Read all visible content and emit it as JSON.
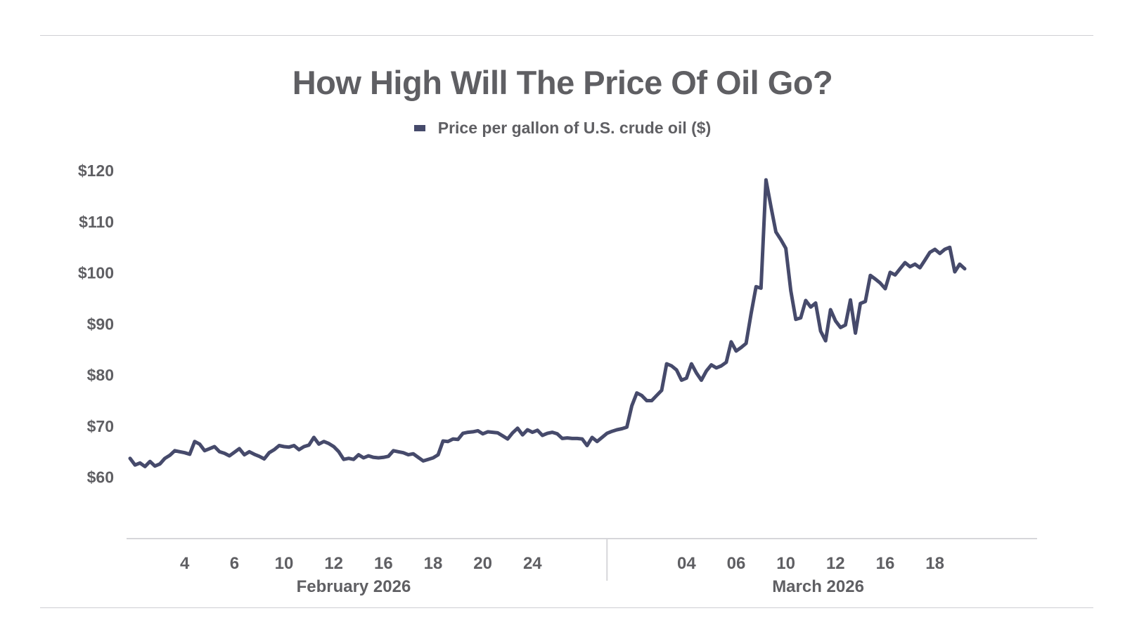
{
  "chart_data": {
    "type": "line",
    "title": "How High Will The Price Of Oil Go?",
    "legend": {
      "label": "Price per gallon of U.S. crude oil ($)",
      "placement": "top-center"
    },
    "color": "#464a6b",
    "xlabel": "",
    "ylabel": "",
    "grid": false,
    "ylim": [
      48,
      120
    ],
    "yticks": [
      60,
      70,
      80,
      90,
      100,
      110,
      120
    ],
    "ytick_labels": [
      "$60",
      "$70",
      "$80",
      "$90",
      "$100",
      "$110",
      "$120"
    ],
    "x_range": [
      0,
      168
    ],
    "xticks": [
      {
        "x": 11,
        "label": "4"
      },
      {
        "x": 21,
        "label": "6"
      },
      {
        "x": 31,
        "label": "10"
      },
      {
        "x": 41,
        "label": "12"
      },
      {
        "x": 51,
        "label": "16"
      },
      {
        "x": 61,
        "label": "18"
      },
      {
        "x": 71,
        "label": "20"
      },
      {
        "x": 81,
        "label": "24"
      },
      {
        "x": 112,
        "label": "04"
      },
      {
        "x": 122,
        "label": "06"
      },
      {
        "x": 132,
        "label": "10"
      },
      {
        "x": 142,
        "label": "12"
      },
      {
        "x": 152,
        "label": "16"
      },
      {
        "x": 162,
        "label": "18"
      }
    ],
    "groups": [
      {
        "label": "February 2026",
        "center": 45
      },
      {
        "label": "March 2026",
        "center": 138.5
      }
    ],
    "group_divider": 96,
    "series": [
      {
        "name": "Price per gallon of U.S. crude oil ($)",
        "points": [
          [
            0,
            63.7
          ],
          [
            1,
            62.4
          ],
          [
            2,
            62.8
          ],
          [
            3,
            62.1
          ],
          [
            4,
            63.1
          ],
          [
            5,
            62.2
          ],
          [
            6,
            62.6
          ],
          [
            7,
            63.7
          ],
          [
            8,
            64.3
          ],
          [
            9,
            65.2
          ],
          [
            10,
            65.0
          ],
          [
            11,
            64.8
          ],
          [
            12,
            64.5
          ],
          [
            13,
            67.0
          ],
          [
            14,
            66.5
          ],
          [
            15,
            65.2
          ],
          [
            16,
            65.6
          ],
          [
            17,
            66.0
          ],
          [
            18,
            65.0
          ],
          [
            19,
            64.7
          ],
          [
            20,
            64.2
          ],
          [
            21,
            64.9
          ],
          [
            22,
            65.6
          ],
          [
            23,
            64.4
          ],
          [
            24,
            65.0
          ],
          [
            25,
            64.5
          ],
          [
            26,
            64.1
          ],
          [
            27,
            63.6
          ],
          [
            28,
            64.8
          ],
          [
            29,
            65.4
          ],
          [
            30,
            66.2
          ],
          [
            31,
            66.0
          ],
          [
            32,
            65.9
          ],
          [
            33,
            66.2
          ],
          [
            34,
            65.4
          ],
          [
            35,
            66.0
          ],
          [
            36,
            66.3
          ],
          [
            37,
            67.8
          ],
          [
            38,
            66.5
          ],
          [
            39,
            67.0
          ],
          [
            40,
            66.6
          ],
          [
            41,
            66.0
          ],
          [
            42,
            65.0
          ],
          [
            43,
            63.5
          ],
          [
            44,
            63.7
          ],
          [
            45,
            63.5
          ],
          [
            46,
            64.4
          ],
          [
            47,
            63.8
          ],
          [
            48,
            64.2
          ],
          [
            49,
            63.9
          ],
          [
            50,
            63.8
          ],
          [
            51,
            63.9
          ],
          [
            52,
            64.1
          ],
          [
            53,
            65.2
          ],
          [
            54,
            65.0
          ],
          [
            55,
            64.8
          ],
          [
            56,
            64.4
          ],
          [
            57,
            64.6
          ],
          [
            58,
            63.9
          ],
          [
            59,
            63.2
          ],
          [
            60,
            63.5
          ],
          [
            61,
            63.8
          ],
          [
            62,
            64.4
          ],
          [
            63,
            67.1
          ],
          [
            64,
            67.0
          ],
          [
            65,
            67.5
          ],
          [
            66,
            67.4
          ],
          [
            67,
            68.6
          ],
          [
            68,
            68.8
          ],
          [
            69,
            68.9
          ],
          [
            70,
            69.1
          ],
          [
            71,
            68.5
          ],
          [
            72,
            68.9
          ],
          [
            73,
            68.8
          ],
          [
            74,
            68.7
          ],
          [
            75,
            68.1
          ],
          [
            76,
            67.5
          ],
          [
            77,
            68.7
          ],
          [
            78,
            69.6
          ],
          [
            79,
            68.3
          ],
          [
            80,
            69.3
          ],
          [
            81,
            68.8
          ],
          [
            82,
            69.2
          ],
          [
            83,
            68.2
          ],
          [
            84,
            68.6
          ],
          [
            85,
            68.8
          ],
          [
            86,
            68.5
          ],
          [
            87,
            67.6
          ],
          [
            88,
            67.7
          ],
          [
            89,
            67.6
          ],
          [
            90,
            67.6
          ],
          [
            91,
            67.5
          ],
          [
            92,
            66.2
          ],
          [
            93,
            67.8
          ],
          [
            94,
            67.0
          ],
          [
            95,
            67.8
          ],
          [
            96,
            68.6
          ],
          [
            97,
            69.0
          ],
          [
            98,
            69.3
          ],
          [
            99,
            69.5
          ],
          [
            100,
            69.8
          ],
          [
            101,
            74.0
          ],
          [
            102,
            76.5
          ],
          [
            103,
            76.0
          ],
          [
            104,
            75.0
          ],
          [
            105,
            75.0
          ],
          [
            106,
            76.0
          ],
          [
            107,
            77.0
          ],
          [
            108,
            82.2
          ],
          [
            109,
            81.8
          ],
          [
            110,
            81.0
          ],
          [
            111,
            79.0
          ],
          [
            112,
            79.4
          ],
          [
            113,
            82.2
          ],
          [
            114,
            80.4
          ],
          [
            115,
            79.0
          ],
          [
            116,
            80.8
          ],
          [
            117,
            82.0
          ],
          [
            118,
            81.4
          ],
          [
            119,
            81.8
          ],
          [
            120,
            82.5
          ],
          [
            121,
            86.5
          ],
          [
            122,
            84.7
          ],
          [
            123,
            85.4
          ],
          [
            124,
            86.2
          ],
          [
            125,
            92.0
          ],
          [
            126,
            97.3
          ],
          [
            127,
            97.0
          ],
          [
            128,
            118.2
          ],
          [
            129,
            113.0
          ],
          [
            130,
            108.0
          ],
          [
            131,
            106.5
          ],
          [
            132,
            104.8
          ],
          [
            133,
            96.5
          ],
          [
            134,
            90.9
          ],
          [
            135,
            91.2
          ],
          [
            136,
            94.6
          ],
          [
            137,
            93.3
          ],
          [
            138,
            94.1
          ],
          [
            139,
            88.6
          ],
          [
            140,
            86.7
          ],
          [
            141,
            92.8
          ],
          [
            142,
            90.6
          ],
          [
            143,
            89.3
          ],
          [
            144,
            89.8
          ],
          [
            145,
            94.7
          ],
          [
            146,
            88.2
          ],
          [
            147,
            94.0
          ],
          [
            148,
            94.4
          ],
          [
            149,
            99.5
          ],
          [
            150,
            98.8
          ],
          [
            151,
            98.0
          ],
          [
            152,
            96.9
          ],
          [
            153,
            100.1
          ],
          [
            154,
            99.6
          ],
          [
            155,
            100.8
          ],
          [
            156,
            102.0
          ],
          [
            157,
            101.2
          ],
          [
            158,
            101.7
          ],
          [
            159,
            101.0
          ],
          [
            160,
            102.5
          ],
          [
            161,
            104.0
          ],
          [
            162,
            104.6
          ],
          [
            163,
            103.8
          ],
          [
            164,
            104.6
          ],
          [
            165,
            105.0
          ],
          [
            166,
            100.2
          ],
          [
            167,
            101.7
          ],
          [
            168,
            100.8
          ]
        ]
      }
    ]
  }
}
